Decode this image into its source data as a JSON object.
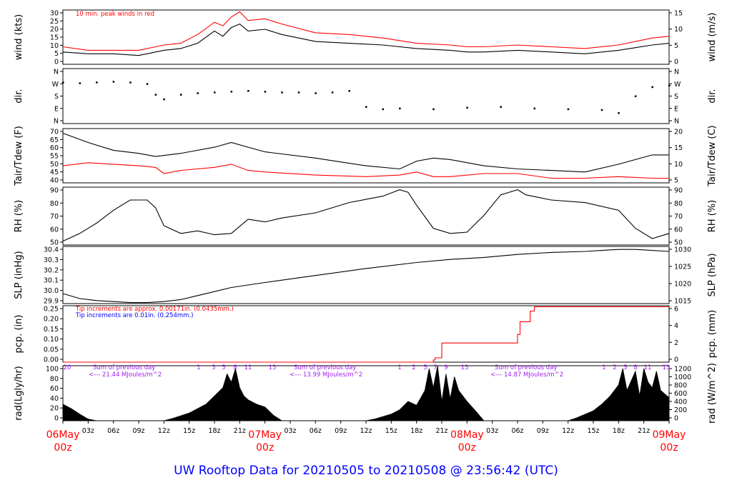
{
  "footer": "UW Rooftop Data for 20210505  to  20210508 @ 23:56:42  (UTC)",
  "colors": {
    "ink": "#000000",
    "red": "#ff0000",
    "blue": "#0000ff",
    "purple": "#a020f0",
    "title_blue": "#0000ff"
  },
  "chart_data": [
    {
      "type": "line",
      "ylabel": "wind (kts)",
      "ylabel_right": "wind (m/s)",
      "yticks": [
        "0",
        "5",
        "10",
        "15",
        "20",
        "25",
        "30"
      ],
      "yticks_right": [
        "0",
        "5",
        "10",
        "15"
      ],
      "ylim": [
        0,
        31
      ],
      "note": "10 min. peak winds in red",
      "series": [
        {
          "color": "#000000",
          "x_hours": [
            0,
            3,
            6,
            9,
            11,
            12,
            14,
            16,
            18,
            19,
            20,
            21,
            22,
            24,
            26,
            30,
            34,
            38,
            42,
            46,
            48,
            50,
            54,
            58,
            62,
            66,
            70,
            72
          ],
          "values": [
            7,
            6,
            6,
            5,
            7,
            8,
            9,
            12,
            19,
            16,
            21,
            23,
            19,
            20,
            17,
            13,
            12,
            11,
            9,
            8,
            7,
            7,
            8,
            7,
            6,
            8,
            11,
            12
          ]
        },
        {
          "color": "#ff0000",
          "x_hours": [
            0,
            3,
            6,
            9,
            11,
            12,
            14,
            16,
            18,
            19,
            20,
            21,
            22,
            24,
            26,
            30,
            34,
            38,
            42,
            46,
            48,
            50,
            54,
            58,
            62,
            66,
            70,
            72
          ],
          "values": [
            10,
            8,
            8,
            8,
            10,
            11,
            12,
            17,
            24,
            22,
            27,
            30,
            25,
            26,
            23,
            18,
            17,
            15,
            12,
            11,
            10,
            10,
            11,
            10,
            9,
            11,
            15,
            16
          ]
        }
      ]
    },
    {
      "type": "scatter",
      "ylabel": "dir.",
      "ylabel_right": "dir.",
      "yticks": [
        "N",
        "E",
        "S",
        "W",
        "N"
      ],
      "yticks_right": [
        "N",
        "E",
        "S",
        "W",
        "N"
      ],
      "ylim": [
        0,
        360
      ],
      "series": [
        {
          "color": "#000000",
          "x_hours": [
            0,
            2,
            4,
            6,
            8,
            10,
            11,
            12,
            14,
            16,
            18,
            20,
            22,
            24,
            26,
            28,
            30,
            32,
            34,
            36,
            38,
            40,
            44,
            48,
            52,
            56,
            60,
            64,
            66,
            68,
            70,
            72
          ],
          "values": [
            270,
            265,
            270,
            275,
            270,
            260,
            190,
            160,
            190,
            200,
            205,
            210,
            215,
            210,
            205,
            205,
            200,
            205,
            215,
            110,
            95,
            100,
            95,
            105,
            110,
            100,
            95,
            90,
            70,
            180,
            240,
            250
          ]
        }
      ]
    },
    {
      "type": "line",
      "ylabel": "Tair/Tdew (F)",
      "ylabel_right": "Tair/Tdew (C)",
      "yticks": [
        "40",
        "45",
        "50",
        "55",
        "60",
        "65",
        "70"
      ],
      "yticks_right": [
        "5",
        "10",
        "15",
        "20"
      ],
      "ylim": [
        37,
        72
      ],
      "series": [
        {
          "color": "#000000",
          "x_hours": [
            0,
            3,
            6,
            9,
            11,
            14,
            18,
            20,
            22,
            24,
            30,
            36,
            40,
            42,
            44,
            46,
            50,
            54,
            58,
            62,
            66,
            70,
            72
          ],
          "values": [
            69,
            63,
            58,
            56,
            54,
            56,
            60,
            63,
            60,
            57,
            53,
            48,
            46,
            51,
            53,
            52,
            48,
            46,
            45,
            44,
            49,
            55,
            55
          ]
        },
        {
          "color": "#ff0000",
          "x_hours": [
            0,
            3,
            6,
            9,
            11,
            12,
            14,
            18,
            20,
            22,
            24,
            30,
            36,
            40,
            42,
            44,
            46,
            50,
            54,
            58,
            62,
            66,
            70,
            72
          ],
          "values": [
            48,
            50,
            49,
            48,
            47,
            43,
            45,
            47,
            49,
            45,
            44,
            42,
            41,
            42,
            44,
            41,
            41,
            43,
            43,
            40,
            40,
            41,
            40,
            40
          ]
        }
      ]
    },
    {
      "type": "line",
      "ylabel": "RH (%)",
      "ylabel_right": "RH (%)",
      "yticks": [
        "50",
        "60",
        "70",
        "80",
        "90"
      ],
      "yticks_right": [
        "50",
        "60",
        "70",
        "80",
        "90"
      ],
      "ylim": [
        47,
        92
      ],
      "series": [
        {
          "color": "#000000",
          "x_hours": [
            0,
            2,
            4,
            6,
            8,
            10,
            11,
            12,
            14,
            16,
            18,
            20,
            22,
            24,
            26,
            30,
            34,
            38,
            40,
            41,
            42,
            44,
            46,
            48,
            50,
            52,
            54,
            55,
            58,
            62,
            66,
            68,
            70,
            72
          ],
          "values": [
            50,
            56,
            64,
            74,
            82,
            82,
            76,
            62,
            56,
            58,
            55,
            56,
            67,
            65,
            68,
            72,
            80,
            85,
            90,
            88,
            78,
            60,
            56,
            57,
            70,
            86,
            90,
            86,
            82,
            80,
            74,
            60,
            52,
            56
          ]
        }
      ]
    },
    {
      "type": "line",
      "ylabel": "SLP (inHg)",
      "ylabel_right": "SLP (hPa)",
      "yticks": [
        "29.9",
        "30.0",
        "30.1",
        "30.2",
        "30.3",
        "30.4"
      ],
      "yticks_right": [
        "1015",
        "1020",
        "1025",
        "1030"
      ],
      "ylim": [
        29.88,
        30.45
      ],
      "series": [
        {
          "color": "#000000",
          "x_hours": [
            0,
            2,
            4,
            6,
            8,
            10,
            12,
            14,
            16,
            18,
            20,
            24,
            30,
            36,
            42,
            46,
            50,
            54,
            58,
            62,
            64,
            66,
            68,
            70,
            72
          ],
          "values": [
            29.98,
            29.93,
            29.91,
            29.9,
            29.89,
            29.89,
            29.9,
            29.92,
            29.96,
            30.0,
            30.04,
            30.09,
            30.16,
            30.23,
            30.29,
            30.32,
            30.34,
            30.37,
            30.39,
            30.4,
            30.41,
            30.42,
            30.42,
            30.41,
            30.4
          ]
        }
      ]
    },
    {
      "type": "line",
      "ylabel": "pcp. (in)",
      "ylabel_right": "pcp. (mm)",
      "yticks": [
        "0.00",
        "0.05",
        "0.10",
        "0.15",
        "0.20",
        "0.25"
      ],
      "yticks_right": [
        "0",
        "2",
        "4",
        "6"
      ],
      "ylim": [
        0,
        0.265
      ],
      "notes": [
        "Tip increments are approx. 0.00171in. (0.0435mm.)",
        "Tip increments are 0.01in. (0.254mm.)"
      ],
      "series": [
        {
          "color": "#ff0000",
          "x_hours": [
            0,
            43,
            44,
            44.2,
            45,
            48,
            53,
            54,
            54.3,
            55.5,
            56,
            72
          ],
          "values": [
            0,
            0,
            0.01,
            0.02,
            0.09,
            0.09,
            0.09,
            0.13,
            0.19,
            0.24,
            0.26,
            0.26
          ]
        }
      ]
    },
    {
      "type": "area",
      "ylabel": "rad(Lgly/hr)",
      "ylabel_right": "rad (W/m^2)",
      "yticks": [
        "0",
        "20",
        "40",
        "60",
        "80",
        "100"
      ],
      "yticks_right": [
        "0",
        "200",
        "400",
        "600",
        "800",
        "1000",
        "1200"
      ],
      "ylim": [
        0,
        100
      ],
      "day_notes": [
        "Sum of previous day",
        "<--- 21.44 MJoules/m^2",
        "Sum of previous day",
        "<--- 13.99 MJoules/m^2",
        "Sum of previous day",
        "<--- 14.87 MJoules/m^2"
      ],
      "hour_labels": [
        "20",
        "1",
        "3",
        "5",
        "8",
        "11",
        "13",
        "1",
        "2",
        "5",
        "7",
        "9",
        "13",
        "1",
        "2",
        "5",
        "8",
        "11",
        "13"
      ],
      "series": [
        {
          "color": "#000000",
          "x_hours": [
            0,
            1,
            2,
            3,
            4,
            12,
            13,
            15,
            16,
            17,
            18,
            19,
            19.5,
            20,
            20.5,
            21,
            21.5,
            22,
            23,
            24,
            25,
            26,
            36,
            37,
            39,
            40,
            41,
            42,
            43,
            43.5,
            44,
            44.5,
            45,
            45.5,
            46,
            46.5,
            47,
            48,
            49,
            50,
            60,
            61,
            63,
            64,
            65,
            66,
            66.5,
            67,
            68,
            68.5,
            69,
            69.5,
            70,
            70.5,
            71,
            72
          ],
          "values": [
            30,
            22,
            12,
            3,
            0,
            0,
            4,
            14,
            22,
            30,
            45,
            60,
            85,
            70,
            95,
            60,
            45,
            38,
            30,
            25,
            10,
            0,
            0,
            3,
            12,
            20,
            35,
            28,
            55,
            95,
            60,
            100,
            35,
            85,
            40,
            80,
            55,
            35,
            18,
            0,
            0,
            5,
            18,
            30,
            45,
            65,
            95,
            55,
            90,
            45,
            95,
            70,
            60,
            90,
            55,
            42
          ]
        }
      ]
    }
  ],
  "x_axis": {
    "ticks": [
      "03z",
      "06z",
      "09z",
      "12z",
      "15z",
      "18z",
      "21z",
      "03z",
      "06z",
      "09z",
      "12z",
      "15z",
      "18z",
      "21z",
      "03z",
      "06z",
      "09z",
      "12z",
      "15z",
      "18z",
      "21z"
    ],
    "day_labels": [
      {
        "day": "06May",
        "hour": "00z"
      },
      {
        "day": "07May",
        "hour": "00z"
      },
      {
        "day": "08May",
        "hour": "00z"
      },
      {
        "day": "09May",
        "hour": "00z"
      }
    ]
  }
}
